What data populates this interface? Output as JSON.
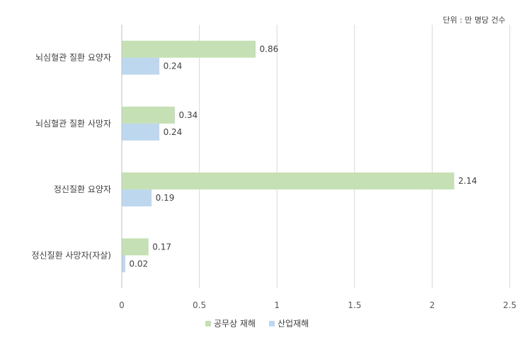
{
  "chart_data": {
    "type": "bar",
    "orientation": "horizontal",
    "unit_note": "단위 : 만 명당 건수",
    "categories": [
      "뇌심혈관 질환 요양자",
      "뇌심혈관 질환 사망자",
      "정신질환 요양자",
      "정신질환 사망자(자살)"
    ],
    "series": [
      {
        "name": "공무상 재해",
        "values": [
          0.86,
          0.34,
          2.14,
          0.17
        ],
        "color": "#c5e0b4"
      },
      {
        "name": "산업재해",
        "values": [
          0.24,
          0.24,
          0.19,
          0.02
        ],
        "color": "#bdd7ee"
      }
    ],
    "xlim": [
      0,
      2.5
    ],
    "xticks": [
      "0",
      "0.5",
      "1",
      "1.5",
      "2",
      "2.5"
    ],
    "grid": true,
    "legend_position": "bottom"
  }
}
